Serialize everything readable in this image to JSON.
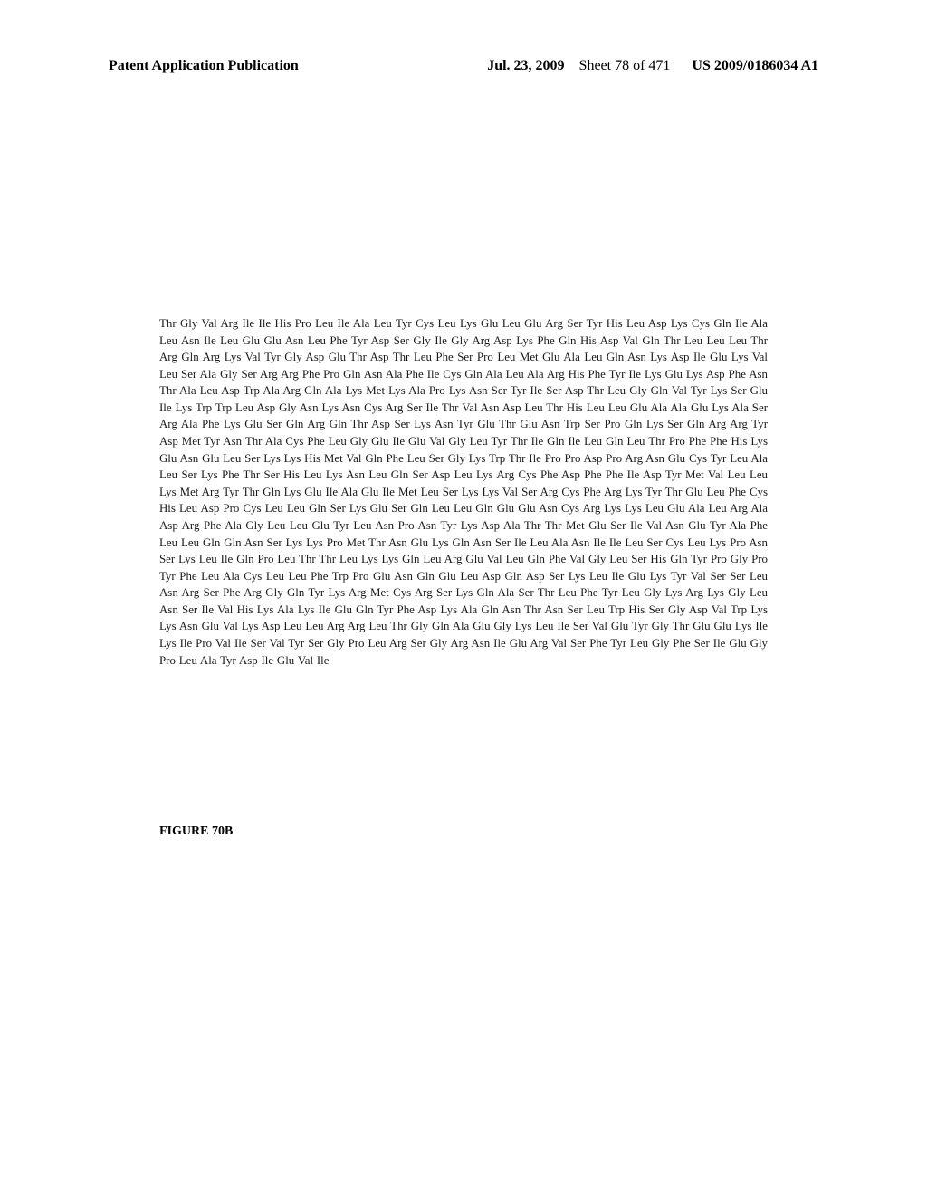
{
  "header": {
    "left": "Patent Application Publication",
    "date": "Jul. 23, 2009",
    "sheet": "Sheet 78 of 471",
    "pubnum": "US 2009/0186034 A1"
  },
  "sequence": {
    "text": "Thr Gly Val Arg Ile Ile His Pro Leu Ile Ala Leu Tyr Cys Leu Lys Glu Leu Glu Arg Ser Tyr His Leu Asp Lys Cys Gln Ile Ala Leu Asn Ile Leu Glu Glu Asn Leu Phe Tyr Asp Ser Gly Ile Gly Arg Asp Lys Phe Gln His Asp Val Gln Thr Leu Leu Leu Thr Arg Gln Arg Lys Val Tyr Gly Asp Glu Thr Asp Thr Leu Phe Ser Pro Leu Met Glu Ala Leu Gln Asn Lys Asp Ile Glu Lys Val Leu Ser Ala Gly Ser Arg Arg Phe Pro Gln Asn Ala Phe Ile Cys Gln Ala Leu Ala Arg His Phe Tyr Ile Lys Glu Lys Asp Phe Asn Thr Ala Leu Asp Trp Ala Arg Gln Ala Lys Met Lys Ala Pro Lys Asn Ser Tyr Ile Ser Asp Thr Leu Gly Gln Val Tyr Lys Ser Glu Ile Lys Trp Trp Leu Asp Gly Asn Lys Asn Cys Arg Ser Ile Thr Val Asn Asp Leu Thr His Leu Leu Glu Ala Ala Glu Lys Ala Ser Arg Ala Phe Lys Glu Ser Gln Arg Gln Thr Asp Ser Lys Asn Tyr Glu Thr Glu Asn Trp Ser Pro Gln Lys Ser Gln Arg Arg Tyr Asp Met Tyr Asn Thr Ala Cys Phe Leu Gly Glu Ile Glu Val Gly Leu Tyr Thr Ile Gln Ile Leu Gln Leu Thr Pro Phe Phe His Lys Glu Asn Glu Leu Ser Lys Lys His Met Val Gln Phe Leu Ser Gly Lys Trp Thr Ile Pro Pro Asp Pro Arg Asn Glu Cys Tyr Leu Ala Leu Ser Lys Phe Thr Ser His Leu Lys Asn Leu Gln Ser Asp Leu Lys Arg Cys Phe Asp Phe Phe Ile Asp Tyr Met Val Leu Leu Lys Met Arg Tyr Thr Gln Lys Glu Ile Ala Glu Ile Met Leu Ser Lys Lys Val Ser Arg Cys Phe Arg Lys Tyr Thr Glu Leu Phe Cys His Leu Asp Pro Cys Leu Leu Gln Ser Lys Glu Ser Gln Leu Leu Gln Glu Glu Asn Cys Arg Lys Lys Leu Glu Ala Leu Arg Ala Asp Arg Phe Ala Gly Leu Leu Glu Tyr Leu Asn Pro Asn Tyr Lys Asp Ala Thr Thr Met Glu Ser Ile Val Asn Glu Tyr Ala Phe Leu Leu Gln Gln Asn Ser Lys Lys Pro Met Thr Asn Glu Lys Gln Asn Ser Ile Leu Ala Asn Ile Ile Leu Ser Cys Leu Lys Pro Asn Ser Lys Leu Ile Gln Pro Leu Thr Thr Leu Lys Lys Gln Leu Arg Glu Val Leu Gln Phe Val Gly Leu Ser His Gln Tyr Pro Gly Pro Tyr Phe Leu Ala Cys Leu Leu Phe Trp Pro Glu Asn Gln Glu Leu Asp Gln Asp Ser Lys Leu Ile Glu Lys Tyr Val Ser Ser Leu Asn Arg Ser Phe Arg Gly Gln Tyr Lys Arg Met Cys Arg Ser Lys Gln Ala Ser Thr Leu Phe Tyr Leu Gly Lys Arg Lys Gly Leu Asn Ser Ile Val His Lys Ala Lys Ile Glu Gln Tyr Phe Asp Lys Ala Gln Asn Thr Asn Ser Leu Trp His Ser Gly Asp Val Trp Lys Lys Asn Glu Val Lys Asp Leu Leu Arg Arg Leu Thr Gly Gln Ala Glu Gly Lys Leu Ile Ser Val Glu Tyr Gly Thr Glu Glu Lys Ile Lys Ile Pro Val Ile Ser Val Tyr Ser Gly Pro Leu Arg Ser Gly Arg Asn Ile Glu Arg Val Ser Phe Tyr Leu Gly Phe Ser Ile Glu Gly Pro Leu Ala Tyr Asp Ile Glu Val Ile"
  },
  "figure": {
    "label": "FIGURE 70B"
  }
}
